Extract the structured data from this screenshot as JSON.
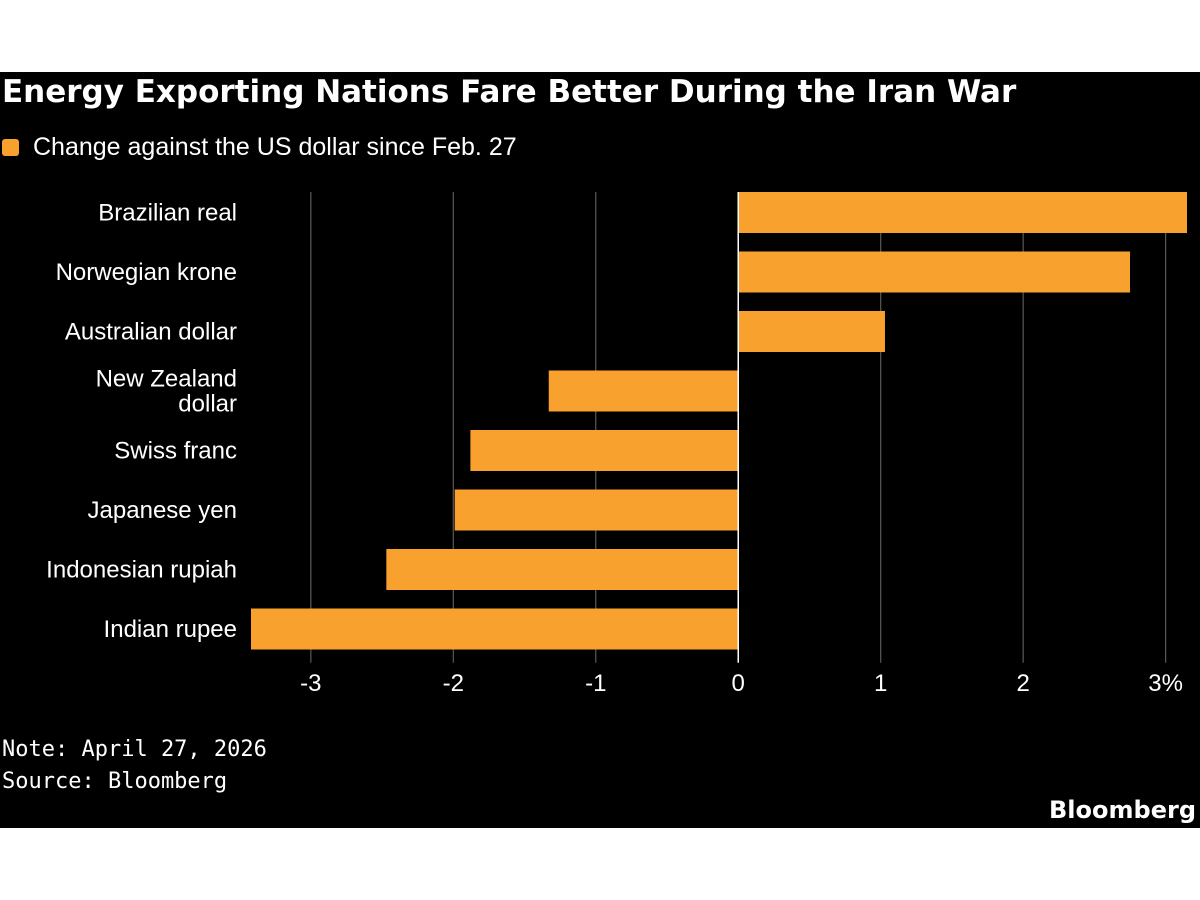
{
  "colors": {
    "background": "#000000",
    "bar": "#F9A12E",
    "grid": "#5a5a5a",
    "text": "#ffffff"
  },
  "chart_data": {
    "type": "bar",
    "orientation": "horizontal",
    "title": "Energy Exporting Nations Fare Better During the Iran War",
    "legend": [
      {
        "label": "Change against the US dollar since Feb. 27",
        "color": "#F9A12E"
      }
    ],
    "legend_position": "top-left",
    "categories": [
      "Brazilian real",
      "Norwegian krone",
      "Australian dollar",
      "New Zealand dollar",
      "Swiss franc",
      "Japanese yen",
      "Indonesian rupiah",
      "Indian rupee"
    ],
    "category_lines": [
      [
        "Brazilian real"
      ],
      [
        "Norwegian krone"
      ],
      [
        "Australian dollar"
      ],
      [
        "New Zealand",
        "dollar"
      ],
      [
        "Swiss franc"
      ],
      [
        "Japanese yen"
      ],
      [
        "Indonesian rupiah"
      ],
      [
        "Indian rupee"
      ]
    ],
    "series": [
      {
        "name": "Change against the US dollar since Feb. 27",
        "values": [
          3.15,
          2.75,
          1.03,
          -1.33,
          -1.88,
          -1.99,
          -2.47,
          -3.42
        ]
      }
    ],
    "xlim": [
      -3.42,
      3.15
    ],
    "xticks": [
      -3,
      -2,
      -1,
      0,
      1,
      2,
      3
    ],
    "xtick_labels": [
      "-3",
      "-2",
      "-1",
      "0",
      "1",
      "2",
      "3%"
    ],
    "xlabel": "",
    "ylabel": "",
    "grid": true
  },
  "footer": {
    "note": "Note: April 27, 2026",
    "source": "Source: Bloomberg",
    "brand": "Bloomberg"
  }
}
